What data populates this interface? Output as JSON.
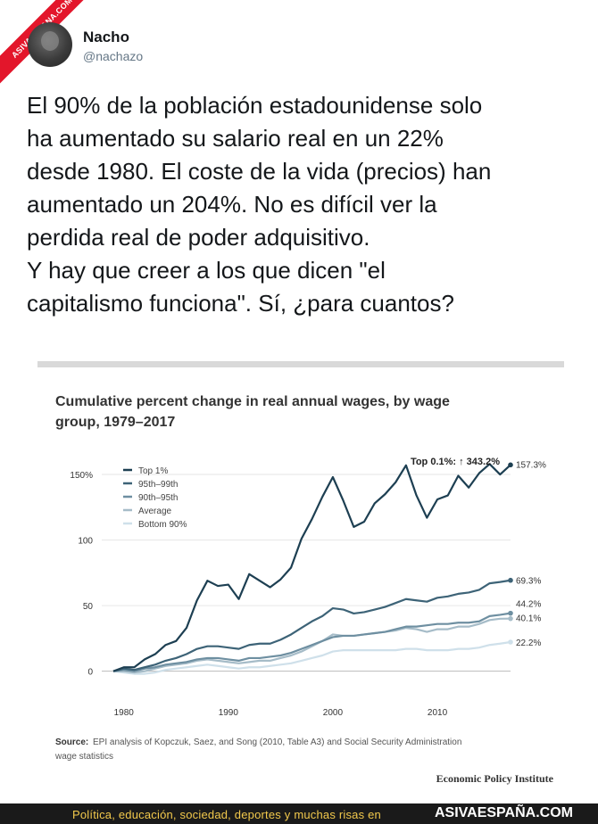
{
  "watermark": "ASIVAESPANA.COM",
  "tweet": {
    "name": "Nacho",
    "handle": "@nachazo",
    "text": "El 90% de la población estadounidense solo\nha aumentado su salario real en un 22%\ndesde 1980. El coste de la vida (precios) han\naumentado un 204%. No es difícil ver la\nperdida real de poder adquisitivo.\nY hay que creer a los que dicen \"el\ncapitalismo funciona\". Sí, ¿para cuantos?"
  },
  "chart_title": "Cumulative percent change in real annual wages, by wage group, 1979–2017",
  "source_label": "Source:",
  "source_text": "EPI analysis of Kopczuk, Saez, and Song (2010, Table A3) and Social Security Administration wage statistics",
  "publisher": "Economic Policy Institute",
  "top01_label": "Top 0.1%: ↑ 343.2%",
  "colors": {
    "top1": "#1d3f52",
    "p95_99": "#3d6377",
    "p90_95": "#6e8fa1",
    "average": "#a6bcc8",
    "bottom90": "#cfe0ea"
  },
  "chart_data": {
    "type": "line",
    "x": [
      1979,
      1980,
      1981,
      1982,
      1983,
      1984,
      1985,
      1986,
      1987,
      1988,
      1989,
      1990,
      1991,
      1992,
      1993,
      1994,
      1995,
      1996,
      1997,
      1998,
      1999,
      2000,
      2001,
      2002,
      2003,
      2004,
      2005,
      2006,
      2007,
      2008,
      2009,
      2010,
      2011,
      2012,
      2013,
      2014,
      2015,
      2016,
      2017
    ],
    "xticks": [
      1980,
      1990,
      2000,
      2010
    ],
    "yticks": [
      0,
      50,
      100,
      150
    ],
    "ytick_labels": [
      "0",
      "50",
      "100",
      "150%"
    ],
    "ylim": [
      -5,
      165
    ],
    "xlim": [
      1979,
      2017
    ],
    "series": [
      {
        "name": "Top 1%",
        "key": "top1",
        "end_label": "157.3%",
        "values": [
          0,
          3,
          3,
          9,
          13,
          20,
          23,
          33,
          54,
          69,
          65,
          66,
          55,
          74,
          69,
          64,
          70,
          79,
          101,
          116,
          133,
          148,
          130,
          110,
          114,
          128,
          135,
          144,
          157,
          134,
          117,
          131,
          134,
          149,
          140,
          151,
          158,
          150,
          157.3
        ]
      },
      {
        "name": "95th–99th",
        "key": "p95_99",
        "end_label": "69.3%",
        "values": [
          0,
          2,
          1,
          3,
          5,
          8,
          10,
          13,
          17,
          19,
          19,
          18,
          17,
          20,
          21,
          21,
          24,
          28,
          33,
          38,
          42,
          48,
          47,
          44,
          45,
          47,
          49,
          52,
          55,
          54,
          53,
          56,
          57,
          59,
          60,
          62,
          67,
          68,
          69.3
        ]
      },
      {
        "name": "90th–95th",
        "key": "p90_95",
        "end_label": "44.2%",
        "values": [
          0,
          1,
          0,
          2,
          3,
          5,
          6,
          7,
          9,
          10,
          10,
          9,
          8,
          10,
          10,
          11,
          12,
          14,
          17,
          20,
          23,
          26,
          27,
          27,
          28,
          29,
          30,
          32,
          34,
          34,
          35,
          36,
          36,
          37,
          37,
          38,
          42,
          43,
          44.2
        ]
      },
      {
        "name": "Average",
        "key": "average",
        "end_label": "40.1%",
        "values": [
          0,
          0,
          -1,
          0,
          2,
          4,
          5,
          6,
          8,
          9,
          8,
          7,
          6,
          7,
          8,
          8,
          10,
          12,
          15,
          19,
          23,
          28,
          27,
          27,
          28,
          29,
          30,
          31,
          33,
          32,
          30,
          32,
          32,
          34,
          34,
          36,
          39,
          40,
          40.1
        ]
      },
      {
        "name": "Bottom 90%",
        "key": "bottom90",
        "end_label": "22.2%",
        "values": [
          0,
          -1,
          -2,
          -2,
          -1,
          1,
          2,
          3,
          4,
          5,
          4,
          3,
          2,
          3,
          3,
          4,
          5,
          6,
          8,
          10,
          12,
          15,
          16,
          16,
          16,
          16,
          16,
          16,
          17,
          17,
          16,
          16,
          16,
          17,
          17,
          18,
          20,
          21,
          22.2
        ]
      }
    ]
  },
  "footer": {
    "tagline": "Política, educación, sociedad, deportes y muchas risas en",
    "brand": "ASIVAESPAÑA.COM"
  }
}
